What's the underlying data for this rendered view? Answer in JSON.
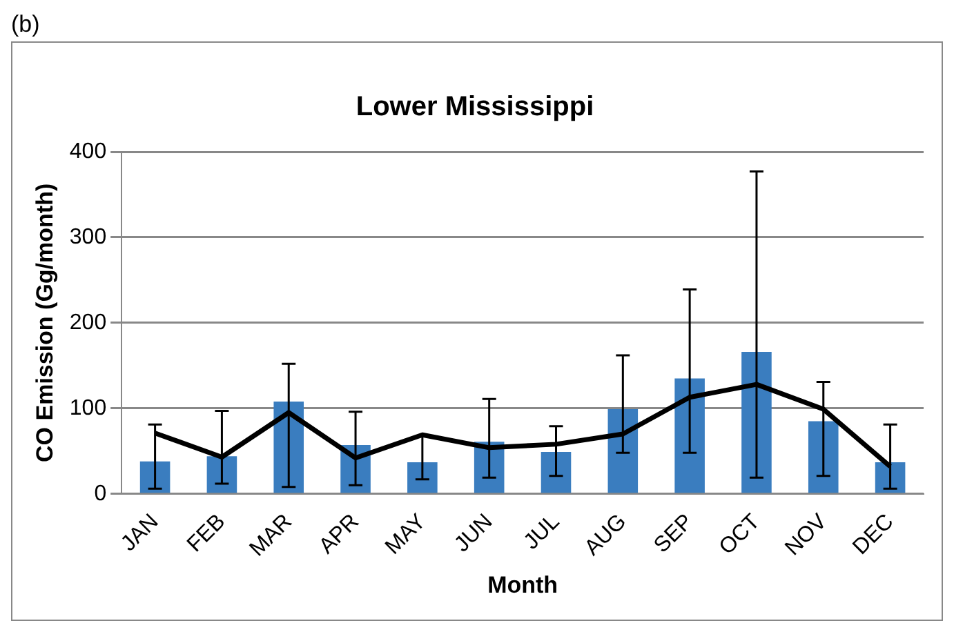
{
  "chart_data": {
    "type": "bar",
    "title": "Lower Mississippi",
    "xlabel": "Month",
    "ylabel": "CO Emission (Gg/month)",
    "annotations": [
      "(b)"
    ],
    "categories": [
      "JAN",
      "FEB",
      "MAR",
      "APR",
      "MAY",
      "JUN",
      "JUL",
      "AUG",
      "SEP",
      "OCT",
      "NOV",
      "DEC"
    ],
    "series": [
      {
        "color": "#3a7dbf",
        "values": [
          38,
          44,
          108,
          57,
          37,
          61,
          49,
          99,
          135,
          166,
          85,
          37
        ],
        "errors": [
          [
            6,
            81
          ],
          [
            12,
            97
          ],
          [
            8,
            152
          ],
          [
            10,
            96
          ],
          [
            17,
            68
          ],
          [
            19,
            111
          ],
          [
            21,
            79
          ],
          [
            48,
            162
          ],
          [
            48,
            239
          ],
          [
            19,
            377
          ],
          [
            21,
            131
          ],
          [
            6,
            81
          ]
        ]
      },
      {
        "type": "line",
        "color": "#000000",
        "values": [
          71,
          43,
          95,
          42,
          69,
          54,
          58,
          70,
          113,
          128,
          99,
          32
        ]
      }
    ],
    "ylim": [
      0,
      400
    ],
    "yticks": [
      0,
      100,
      200,
      300,
      400
    ],
    "grid": "y",
    "legend": false,
    "marker": "none",
    "line_style": "solid"
  }
}
